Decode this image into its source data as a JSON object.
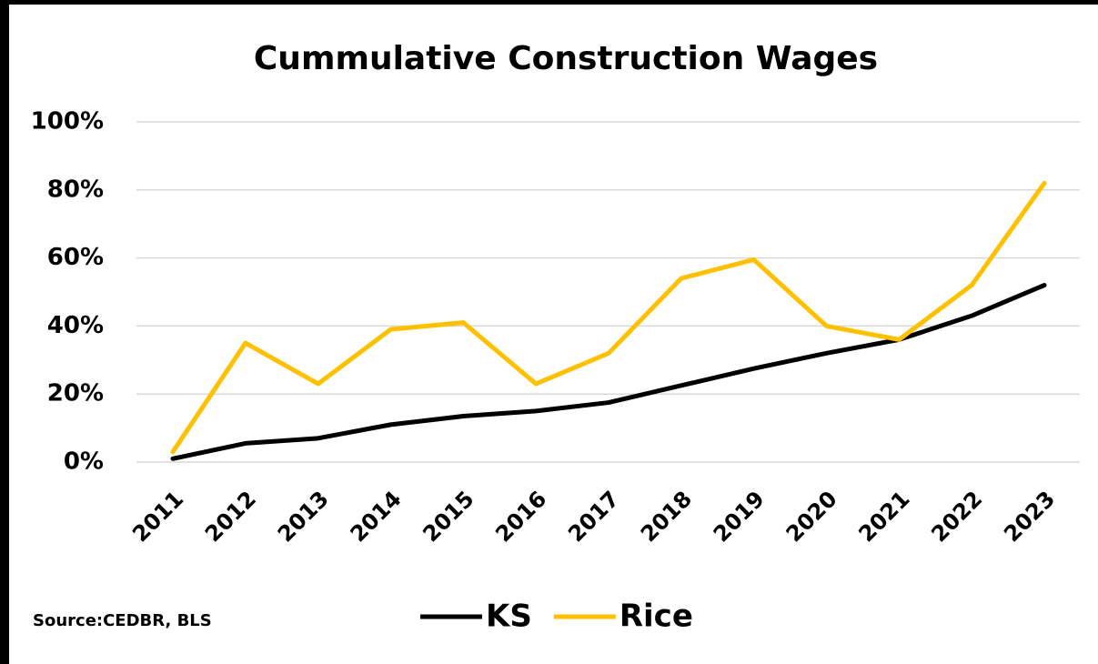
{
  "chart_data": {
    "type": "line",
    "title": "Cummulative Construction Wages",
    "categories": [
      "2011",
      "2012",
      "2013",
      "2014",
      "2015",
      "2016",
      "2017",
      "2018",
      "2019",
      "2020",
      "2021",
      "2022",
      "2023"
    ],
    "series": [
      {
        "name": "KS",
        "color": "#000000",
        "values": [
          1,
          5.5,
          7,
          11,
          13.5,
          15,
          17.5,
          22.5,
          27.5,
          32,
          36,
          43,
          52
        ]
      },
      {
        "name": "Rice",
        "color": "#ffc000",
        "values": [
          3,
          35,
          23,
          39,
          41,
          23,
          32,
          54,
          59.5,
          40,
          36,
          52,
          82
        ]
      }
    ],
    "ylim": [
      0,
      100
    ],
    "yticks": [
      {
        "value": 0,
        "label": "0%"
      },
      {
        "value": 20,
        "label": "20%"
      },
      {
        "value": 40,
        "label": "40%"
      },
      {
        "value": 60,
        "label": "60%"
      },
      {
        "value": 80,
        "label": "80%"
      },
      {
        "value": 100,
        "label": "100%"
      }
    ],
    "grid": true,
    "legend": "bottom",
    "annotation": "Source:CEDBR, BLS"
  }
}
